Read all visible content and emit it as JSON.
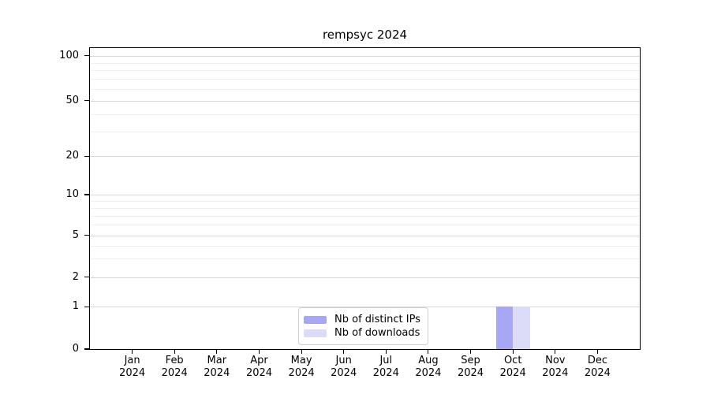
{
  "chart_data": {
    "type": "bar",
    "title": "rempsyc 2024",
    "categories": [
      "Jan 2024",
      "Feb 2024",
      "Mar 2024",
      "Apr 2024",
      "May 2024",
      "Jun 2024",
      "Jul 2024",
      "Aug 2024",
      "Sep 2024",
      "Oct 2024",
      "Nov 2024",
      "Dec 2024"
    ],
    "months": [
      "Jan",
      "Feb",
      "Mar",
      "Apr",
      "May",
      "Jun",
      "Jul",
      "Aug",
      "Sep",
      "Oct",
      "Nov",
      "Dec"
    ],
    "year": "2024",
    "series": [
      {
        "name": "Nb of distinct IPs",
        "color": "#a7a7f4",
        "values": [
          0,
          0,
          0,
          0,
          0,
          0,
          0,
          0,
          0,
          1,
          0,
          0
        ]
      },
      {
        "name": "Nb of downloads",
        "color": "#dcdcf8",
        "values": [
          0,
          0,
          0,
          0,
          0,
          0,
          0,
          0,
          0,
          1,
          0,
          0
        ]
      }
    ],
    "y_ticks": [
      0,
      1,
      2,
      5,
      10,
      20,
      50,
      100
    ],
    "y_minor_ticks": [
      3,
      4,
      6,
      7,
      8,
      9,
      30,
      40,
      60,
      70,
      80,
      90
    ],
    "yscale": "symlog",
    "ylim": [
      0,
      105
    ],
    "xlabel": "",
    "ylabel": "",
    "grid": "horizontal major+minor",
    "legend_position": "lower center",
    "colors": {
      "grid_major": "#d8d8d8",
      "grid_minor": "#efefef",
      "spine": "#000000",
      "background": "#ffffff"
    }
  }
}
